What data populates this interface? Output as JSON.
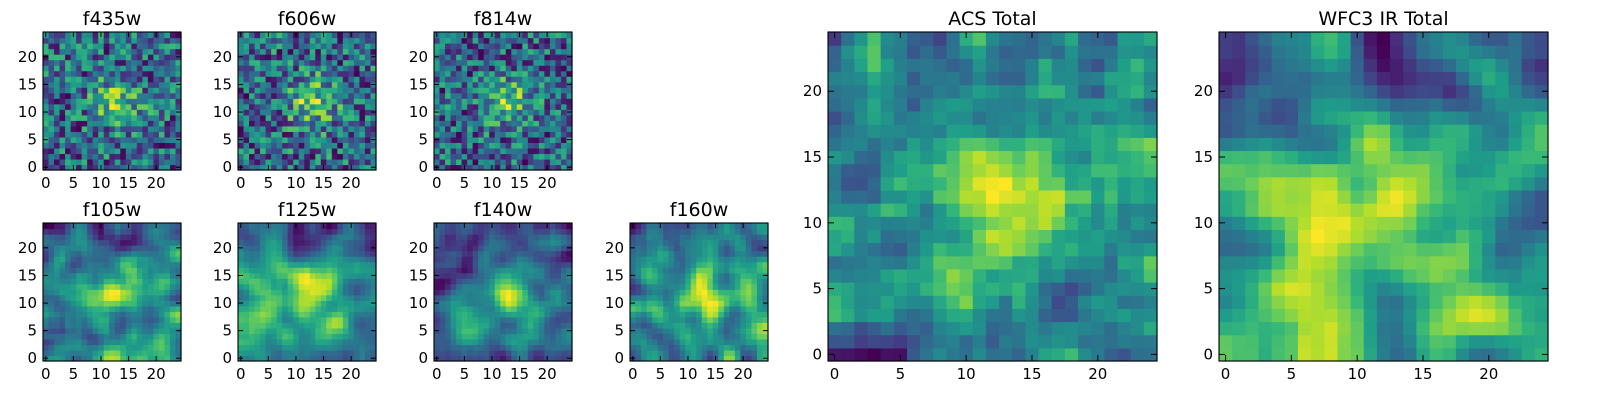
{
  "colors": {
    "colormap": "viridis",
    "frame": "#000000",
    "background": "#ffffff"
  },
  "chart_data": [
    {
      "type": "heatmap",
      "title": "f435w",
      "grid_size": 25,
      "xlim": [
        0,
        24
      ],
      "ylim": [
        0,
        24
      ],
      "xticks": [
        "0",
        "5",
        "10",
        "15",
        "20"
      ],
      "yticks": [
        "0",
        "5",
        "10",
        "15",
        "20"
      ],
      "colormap": "viridis",
      "field_style": "noise",
      "seed": 11
    },
    {
      "type": "heatmap",
      "title": "f606w",
      "grid_size": 25,
      "xlim": [
        0,
        24
      ],
      "ylim": [
        0,
        24
      ],
      "xticks": [
        "0",
        "5",
        "10",
        "15",
        "20"
      ],
      "yticks": [
        "0",
        "5",
        "10",
        "15",
        "20"
      ],
      "colormap": "viridis",
      "field_style": "noise",
      "seed": 23
    },
    {
      "type": "heatmap",
      "title": "f814w",
      "grid_size": 25,
      "xlim": [
        0,
        24
      ],
      "ylim": [
        0,
        24
      ],
      "xticks": [
        "0",
        "5",
        "10",
        "15",
        "20"
      ],
      "yticks": [
        "0",
        "5",
        "10",
        "15",
        "20"
      ],
      "colormap": "viridis",
      "field_style": "noise",
      "seed": 37
    },
    {
      "type": "heatmap",
      "title": "f105w",
      "grid_size": 25,
      "xlim": [
        0,
        24
      ],
      "ylim": [
        0,
        24
      ],
      "xticks": [
        "0",
        "5",
        "10",
        "15",
        "20"
      ],
      "yticks": [
        "0",
        "5",
        "10",
        "15",
        "20"
      ],
      "colormap": "viridis",
      "field_style": "ir",
      "seed": 41
    },
    {
      "type": "heatmap",
      "title": "f125w",
      "grid_size": 25,
      "xlim": [
        0,
        24
      ],
      "ylim": [
        0,
        24
      ],
      "xticks": [
        "0",
        "5",
        "10",
        "15",
        "20"
      ],
      "yticks": [
        "0",
        "5",
        "10",
        "15",
        "20"
      ],
      "colormap": "viridis",
      "field_style": "ir",
      "seed": 53
    },
    {
      "type": "heatmap",
      "title": "f140w",
      "grid_size": 25,
      "xlim": [
        0,
        24
      ],
      "ylim": [
        0,
        24
      ],
      "xticks": [
        "0",
        "5",
        "10",
        "15",
        "20"
      ],
      "yticks": [
        "0",
        "5",
        "10",
        "15",
        "20"
      ],
      "colormap": "viridis",
      "field_style": "ir",
      "seed": 67
    },
    {
      "type": "heatmap",
      "title": "f160w",
      "grid_size": 25,
      "xlim": [
        0,
        24
      ],
      "ylim": [
        0,
        24
      ],
      "xticks": [
        "0",
        "5",
        "10",
        "15",
        "20"
      ],
      "yticks": [
        "0",
        "5",
        "10",
        "15",
        "20"
      ],
      "colormap": "viridis",
      "field_style": "ir",
      "seed": 79
    },
    {
      "type": "heatmap",
      "title": "ACS Total",
      "grid_size": 25,
      "xlim": [
        0,
        24
      ],
      "ylim": [
        0,
        24
      ],
      "xticks": [
        "0",
        "5",
        "10",
        "15",
        "20"
      ],
      "yticks": [
        "0",
        "5",
        "10",
        "15",
        "20"
      ],
      "colormap": "viridis",
      "field_style": "acs",
      "seed": 97
    },
    {
      "type": "heatmap",
      "title": "WFC3 IR Total",
      "grid_size": 25,
      "xlim": [
        0,
        24
      ],
      "ylim": [
        0,
        24
      ],
      "xticks": [
        "0",
        "5",
        "10",
        "15",
        "20"
      ],
      "yticks": [
        "0",
        "5",
        "10",
        "15",
        "20"
      ],
      "colormap": "viridis",
      "field_style": "ir_total",
      "seed": 101
    }
  ]
}
